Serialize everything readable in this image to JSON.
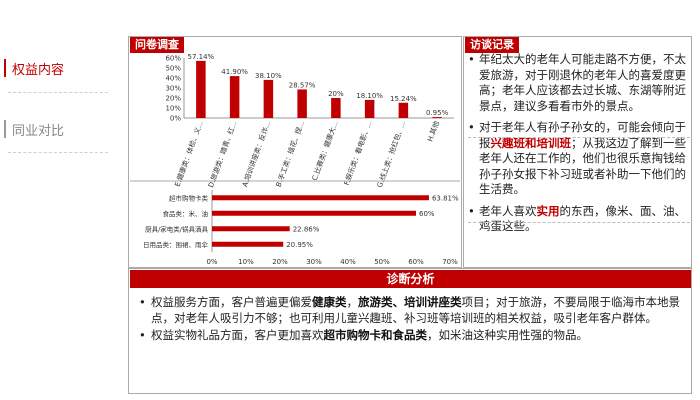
{
  "nav": {
    "items": [
      {
        "label": "权益内容",
        "active": true
      },
      {
        "label": "同业对比",
        "active": false
      }
    ]
  },
  "survey": {
    "title": "问卷调查"
  },
  "interview": {
    "title": "访谈记录",
    "items": [
      {
        "parts": [
          {
            "text": "年纪太大的老年人可能走路不方便，不太爱旅游，对于刚退休的老年人的喜爱度更高；老年人应该都去过长城、东湖等附近景点，建议多看看市外的景点。",
            "style": "plain"
          }
        ]
      },
      {
        "parts": [
          {
            "text": "对于老年人有孙子孙女的，可能会倾向于报",
            "style": "plain"
          },
          {
            "text": "兴趣班和培训班",
            "style": "red"
          },
          {
            "text": "；从我这边了解到一些老年人还在工作的，他们也很乐意掏钱给孙子孙女报下补习班或者补助一下他们的生活费。",
            "style": "plain"
          }
        ]
      },
      {
        "parts": [
          {
            "text": "老年人喜欢",
            "style": "plain"
          },
          {
            "text": "实用",
            "style": "red"
          },
          {
            "text": "的东西，像米、面、油、鸡蛋这些。",
            "style": "plain"
          }
        ]
      }
    ]
  },
  "diagnosis": {
    "title": "诊断分析",
    "items": [
      {
        "parts": [
          {
            "text": "权益服务方面，客户普遍更偏爱",
            "style": "plain"
          },
          {
            "text": "健康类",
            "style": "bold"
          },
          {
            "text": "，",
            "style": "plain"
          },
          {
            "text": "旅游类、培训讲座类",
            "style": "bold"
          },
          {
            "text": "项目；对于旅游，不要局限于临海市本地景点，对老年人吸引力不够；也可利用儿童兴趣班、补习班等培训班的相关权益，吸引老年客户群体。",
            "style": "plain"
          }
        ]
      },
      {
        "parts": [
          {
            "text": "权益实物礼品方面，客户更加喜欢",
            "style": "plain"
          },
          {
            "text": "超市购物卡和食品类",
            "style": "bold"
          },
          {
            "text": "，如米油这种实用性强的物品。",
            "style": "plain"
          }
        ]
      }
    ]
  },
  "colors": {
    "accent": "#c00000"
  },
  "chart_data": [
    {
      "type": "bar",
      "orientation": "vertical",
      "categories": [
        "E.健康类：体检、义...",
        "D.旅游类：踏青、红...",
        "A.培训讲座类：反诈...",
        "B.手工类：插花、捏...",
        "C.比赛类：健康大...",
        "F.娱乐类：看电影、...",
        "G.线上类：抢红包、...",
        "H.其他"
      ],
      "values": [
        57.14,
        41.9,
        38.1,
        28.57,
        20,
        18.1,
        15.24,
        0.95
      ],
      "data_labels": [
        "57.14%",
        "41.90%",
        "38.10%",
        "28.57%",
        "20%",
        "18.10%",
        "15.24%",
        "0.95%"
      ],
      "yticks": [
        "0%",
        "10%",
        "20%",
        "30%",
        "40%",
        "50%",
        "60%"
      ],
      "ylim": [
        0,
        60
      ],
      "grid": false,
      "color": "#c00000"
    },
    {
      "type": "bar",
      "orientation": "horizontal",
      "categories": [
        "超市购物卡类",
        "食品类：米、油",
        "厨具/家电类/锅具酒具",
        "日用品类：围裙、雨伞"
      ],
      "values": [
        63.81,
        60,
        22.86,
        20.95
      ],
      "data_labels": [
        "63.81%",
        "60%",
        "22.86%",
        "20.95%"
      ],
      "xticks": [
        "0%",
        "10%",
        "20%",
        "30%",
        "40%",
        "50%",
        "60%",
        "70%"
      ],
      "xlim": [
        0,
        70
      ],
      "grid": false,
      "color": "#c00000"
    }
  ]
}
